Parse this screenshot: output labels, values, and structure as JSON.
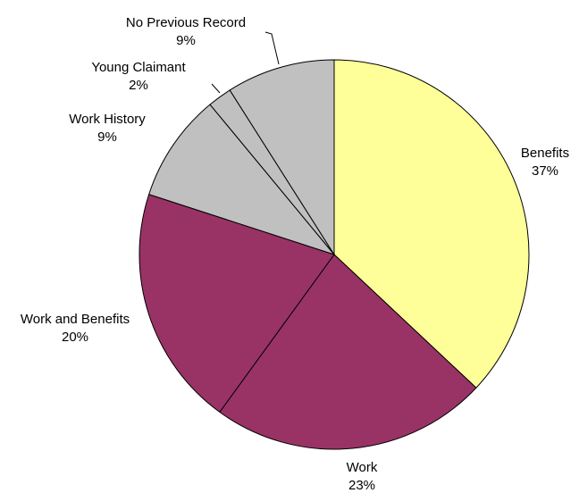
{
  "chart_data": {
    "type": "pie",
    "start_angle": "12 o'clock, clockwise",
    "slices": [
      {
        "label": "Benefits",
        "value": 37,
        "pct_label": "37%",
        "color": "#ffff99"
      },
      {
        "label": "Work",
        "value": 23,
        "pct_label": "23%",
        "color": "#993366"
      },
      {
        "label": "Work and Benefits",
        "value": 20,
        "pct_label": "20%",
        "color": "#993366"
      },
      {
        "label": "Work History",
        "value": 9,
        "pct_label": "9%",
        "color": "#c0c0c0"
      },
      {
        "label": "Young Claimant",
        "value": 2,
        "pct_label": "2%",
        "color": "#c0c0c0"
      },
      {
        "label": "No Previous Record",
        "value": 9,
        "pct_label": "9%",
        "color": "#c0c0c0"
      }
    ]
  }
}
